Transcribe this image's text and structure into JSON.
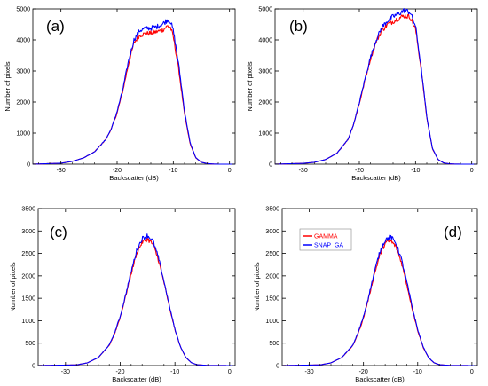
{
  "legend": [
    {
      "label": "GAMMA",
      "color": "#ff0000"
    },
    {
      "label": "SNAP_GA",
      "color": "#0000ff"
    }
  ],
  "chart_data": [
    {
      "type": "line",
      "panel_label": "(a)",
      "xlabel": "Backscatter (dB)",
      "ylabel": "Number of pixels",
      "xlim": [
        -35,
        1
      ],
      "ylim": [
        0,
        5000
      ],
      "x_ticks": [
        -30,
        -20,
        -10,
        0
      ],
      "y_ticks": [
        0,
        1000,
        2000,
        3000,
        4000,
        5000
      ],
      "grid": false,
      "x": [
        -35,
        -30,
        -28,
        -26,
        -24,
        -22,
        -21,
        -20,
        -19,
        -18,
        -17,
        -16,
        -15,
        -14,
        -13,
        -12,
        -11,
        -10.5,
        -10,
        -9,
        -8,
        -7,
        -6,
        -5,
        -4,
        -3,
        -2,
        0
      ],
      "series": [
        {
          "name": "GAMMA",
          "color": "#ff0000",
          "values": [
            0,
            30,
            90,
            200,
            400,
            800,
            1150,
            1650,
            2350,
            3200,
            3900,
            4150,
            4200,
            4220,
            4260,
            4310,
            4450,
            4400,
            4100,
            3000,
            1600,
            650,
            200,
            60,
            20,
            5,
            0,
            0
          ]
        },
        {
          "name": "SNAP_GA",
          "color": "#0000ff",
          "values": [
            0,
            30,
            90,
            200,
            400,
            800,
            1150,
            1700,
            2400,
            3300,
            4000,
            4300,
            4380,
            4380,
            4420,
            4500,
            4650,
            4600,
            4300,
            3150,
            1700,
            680,
            210,
            60,
            20,
            5,
            0,
            0
          ]
        }
      ]
    },
    {
      "type": "line",
      "panel_label": "(b)",
      "xlabel": "Backscatter (dB)",
      "ylabel": "Number of pixels",
      "xlim": [
        -35,
        1
      ],
      "ylim": [
        0,
        5000
      ],
      "x_ticks": [
        -30,
        -20,
        -10,
        0
      ],
      "y_ticks": [
        0,
        1000,
        2000,
        3000,
        4000,
        5000
      ],
      "grid": false,
      "x": [
        -35,
        -30,
        -28,
        -26,
        -24,
        -22,
        -21,
        -20,
        -19,
        -18,
        -17,
        -16,
        -15,
        -14,
        -13,
        -12,
        -11,
        -10,
        -9,
        -8,
        -7,
        -6,
        -5,
        -4,
        -3,
        -2,
        0
      ],
      "series": [
        {
          "name": "GAMMA",
          "color": "#ff0000",
          "values": [
            0,
            25,
            60,
            150,
            350,
            800,
            1300,
            1950,
            2700,
            3400,
            3950,
            4300,
            4500,
            4600,
            4700,
            4780,
            4750,
            4350,
            3050,
            1500,
            500,
            150,
            40,
            10,
            3,
            0,
            0
          ]
        },
        {
          "name": "SNAP_GA",
          "color": "#0000ff",
          "values": [
            0,
            25,
            60,
            150,
            350,
            800,
            1300,
            1980,
            2750,
            3450,
            4000,
            4400,
            4620,
            4750,
            4850,
            4950,
            4900,
            4450,
            3100,
            1520,
            510,
            150,
            40,
            10,
            3,
            0,
            0
          ]
        }
      ]
    },
    {
      "type": "line",
      "panel_label": "(c)",
      "xlabel": "Backscatter (dB)",
      "ylabel": "Number of pixels",
      "xlim": [
        -35,
        1
      ],
      "ylim": [
        0,
        3500
      ],
      "x_ticks": [
        -30,
        -20,
        -10,
        0
      ],
      "y_ticks": [
        0,
        500,
        1000,
        1500,
        2000,
        2500,
        3000,
        3500
      ],
      "grid": false,
      "x": [
        -35,
        -28,
        -26,
        -24,
        -22,
        -21,
        -20,
        -19,
        -18,
        -17,
        -16,
        -15,
        -14,
        -13,
        -12,
        -11,
        -10,
        -9,
        -8,
        -7,
        -6,
        -4,
        0
      ],
      "series": [
        {
          "name": "GAMMA",
          "color": "#ff0000",
          "values": [
            0,
            15,
            60,
            180,
            450,
            720,
            1080,
            1550,
            2050,
            2500,
            2750,
            2820,
            2700,
            2350,
            1850,
            1300,
            800,
            420,
            180,
            65,
            20,
            2,
            0
          ]
        },
        {
          "name": "SNAP_GA",
          "color": "#0000ff",
          "values": [
            0,
            15,
            60,
            180,
            460,
            740,
            1100,
            1580,
            2100,
            2560,
            2830,
            2900,
            2770,
            2400,
            1880,
            1320,
            810,
            425,
            180,
            65,
            20,
            2,
            0
          ]
        }
      ]
    },
    {
      "type": "line",
      "panel_label": "(d)",
      "xlabel": "Backscatter (dB)",
      "ylabel": "Number of pixels",
      "xlim": [
        -35,
        1
      ],
      "ylim": [
        0,
        3500
      ],
      "x_ticks": [
        -30,
        -20,
        -10,
        0
      ],
      "y_ticks": [
        0,
        500,
        1000,
        1500,
        2000,
        2500,
        3000,
        3500
      ],
      "grid": false,
      "legend_position": "top-left",
      "x": [
        -35,
        -28,
        -26,
        -24,
        -22,
        -21,
        -20,
        -19,
        -18,
        -17,
        -16,
        -15,
        -14,
        -13,
        -12,
        -11,
        -10,
        -9,
        -8,
        -7,
        -6,
        -4,
        0
      ],
      "series": [
        {
          "name": "GAMMA",
          "color": "#ff0000",
          "values": [
            0,
            15,
            60,
            180,
            440,
            710,
            1060,
            1530,
            2030,
            2460,
            2730,
            2780,
            2650,
            2300,
            1800,
            1260,
            780,
            410,
            175,
            62,
            20,
            2,
            0
          ]
        },
        {
          "name": "SNAP_GA",
          "color": "#0000ff",
          "values": [
            0,
            15,
            60,
            180,
            450,
            730,
            1090,
            1570,
            2080,
            2530,
            2800,
            2870,
            2730,
            2370,
            1860,
            1300,
            800,
            420,
            178,
            63,
            20,
            2,
            0
          ]
        }
      ]
    }
  ]
}
